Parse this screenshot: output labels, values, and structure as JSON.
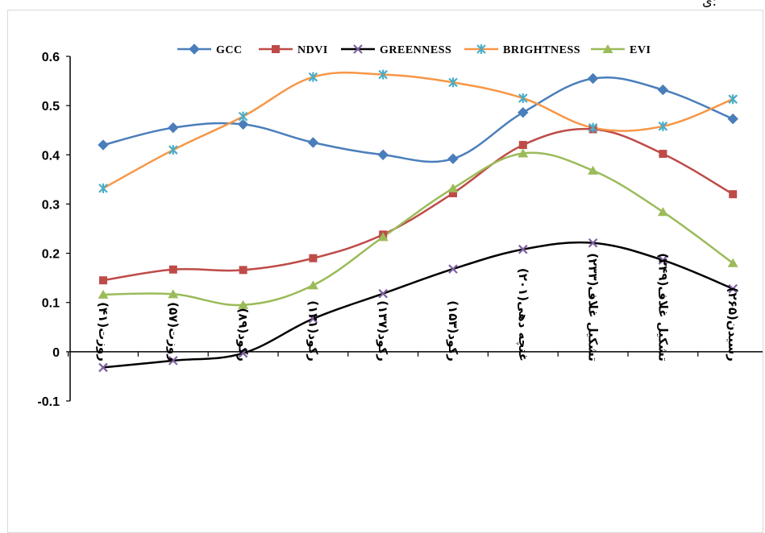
{
  "corner_text": "ی:",
  "chart_data": {
    "type": "line",
    "title": "",
    "xlabel": "",
    "ylabel": "",
    "ylim": [
      -0.1,
      0.6
    ],
    "yticks": [
      "-0.1",
      "0",
      "0.1",
      "0.2",
      "0.3",
      "0.4",
      "0.5",
      "0.6"
    ],
    "ytick_values": [
      -0.1,
      0,
      0.1,
      0.2,
      0.3,
      0.4,
      0.5,
      0.6
    ],
    "grid": false,
    "legend_position": "top",
    "categories": [
      "روزت(۴۱)",
      "روزت(۵۷)",
      "رکود(۸۹)",
      "رکود(۱۲۱)",
      "رکود(۱۳۷)",
      "رکود(۱۵۳)",
      "غنچه دهی(۲۰۱)",
      "تشکیل غلاف(۲۳۳)",
      "تشکیل غلاف(۲۴۹)",
      "رسیدن(۲۶۵)"
    ],
    "series": [
      {
        "name": "GCC",
        "color": "#4a7ebb",
        "marker": "diamond",
        "values": [
          0.42,
          0.455,
          0.462,
          0.425,
          0.4,
          0.392,
          0.486,
          0.555,
          0.532,
          0.473
        ]
      },
      {
        "name": "NDVI",
        "color": "#be4b48",
        "marker": "square",
        "values": [
          0.145,
          0.167,
          0.166,
          0.19,
          0.238,
          0.322,
          0.42,
          0.452,
          0.402,
          0.32
        ]
      },
      {
        "name": "GREENNESS",
        "color": "#000000",
        "marker_color": "#7d60a0",
        "marker": "x",
        "values": [
          -0.032,
          -0.018,
          -0.003,
          0.067,
          0.118,
          0.168,
          0.208,
          0.221,
          0.186,
          0.128
        ]
      },
      {
        "name": "BRIGHTNESS",
        "color": "#f79646",
        "marker_color": "#4bacc6",
        "marker": "star",
        "values": [
          0.332,
          0.41,
          0.478,
          0.558,
          0.563,
          0.547,
          0.515,
          0.455,
          0.458,
          0.513
        ]
      },
      {
        "name": "EVI",
        "color": "#9bbb59",
        "marker": "triangle",
        "values": [
          0.116,
          0.117,
          0.095,
          0.135,
          0.233,
          0.332,
          0.403,
          0.368,
          0.284,
          0.18
        ]
      }
    ]
  }
}
